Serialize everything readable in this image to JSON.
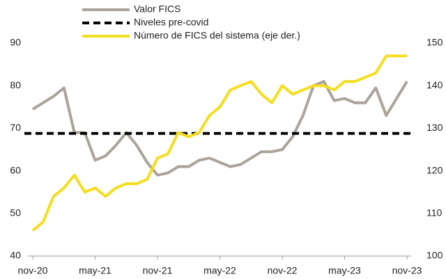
{
  "chart_data": {
    "type": "line",
    "categories": [
      "nov-20",
      null,
      null,
      null,
      null,
      null,
      "may-21",
      null,
      null,
      null,
      null,
      null,
      "nov-21",
      null,
      null,
      null,
      null,
      null,
      "may-22",
      null,
      null,
      null,
      null,
      null,
      "nov-22",
      null,
      null,
      null,
      null,
      null,
      "may-23",
      null,
      null,
      null,
      null,
      null,
      "nov-23"
    ],
    "ylim": [
      40,
      90
    ],
    "yticks": [
      40,
      50,
      60,
      70,
      80,
      90
    ],
    "y2lim": [
      100,
      150
    ],
    "y2ticks": [
      100,
      110,
      120,
      130,
      140,
      150
    ],
    "series": [
      {
        "name": "Valor FICS",
        "color": "#aaa49a",
        "dash": false,
        "values": [
          74.5,
          76,
          77.5,
          79.5,
          69,
          69,
          62.5,
          63.5,
          66,
          69,
          66,
          62,
          59,
          59.5,
          61,
          61,
          62.5,
          63,
          62,
          61,
          61.5,
          63,
          64.5,
          64.5,
          65,
          68,
          73,
          80,
          81,
          76.5,
          77,
          76,
          76,
          79.5,
          73,
          77,
          81
        ]
      },
      {
        "name": "Niveles pre-covid",
        "color": "#000000",
        "dash": true,
        "value": 68.8
      },
      {
        "name": "Número de FICS del sistema (eje der.)",
        "color": "#f5dd1f",
        "dash": false,
        "axis": "y2",
        "values": [
          106,
          108,
          114,
          116,
          119,
          115,
          116,
          114,
          116,
          117,
          117,
          118,
          123,
          124,
          129,
          128,
          129,
          133,
          135,
          139,
          140,
          141,
          138,
          136,
          140,
          138,
          139,
          140,
          140,
          139,
          141,
          141,
          142,
          143,
          147,
          147,
          147
        ]
      }
    ]
  }
}
